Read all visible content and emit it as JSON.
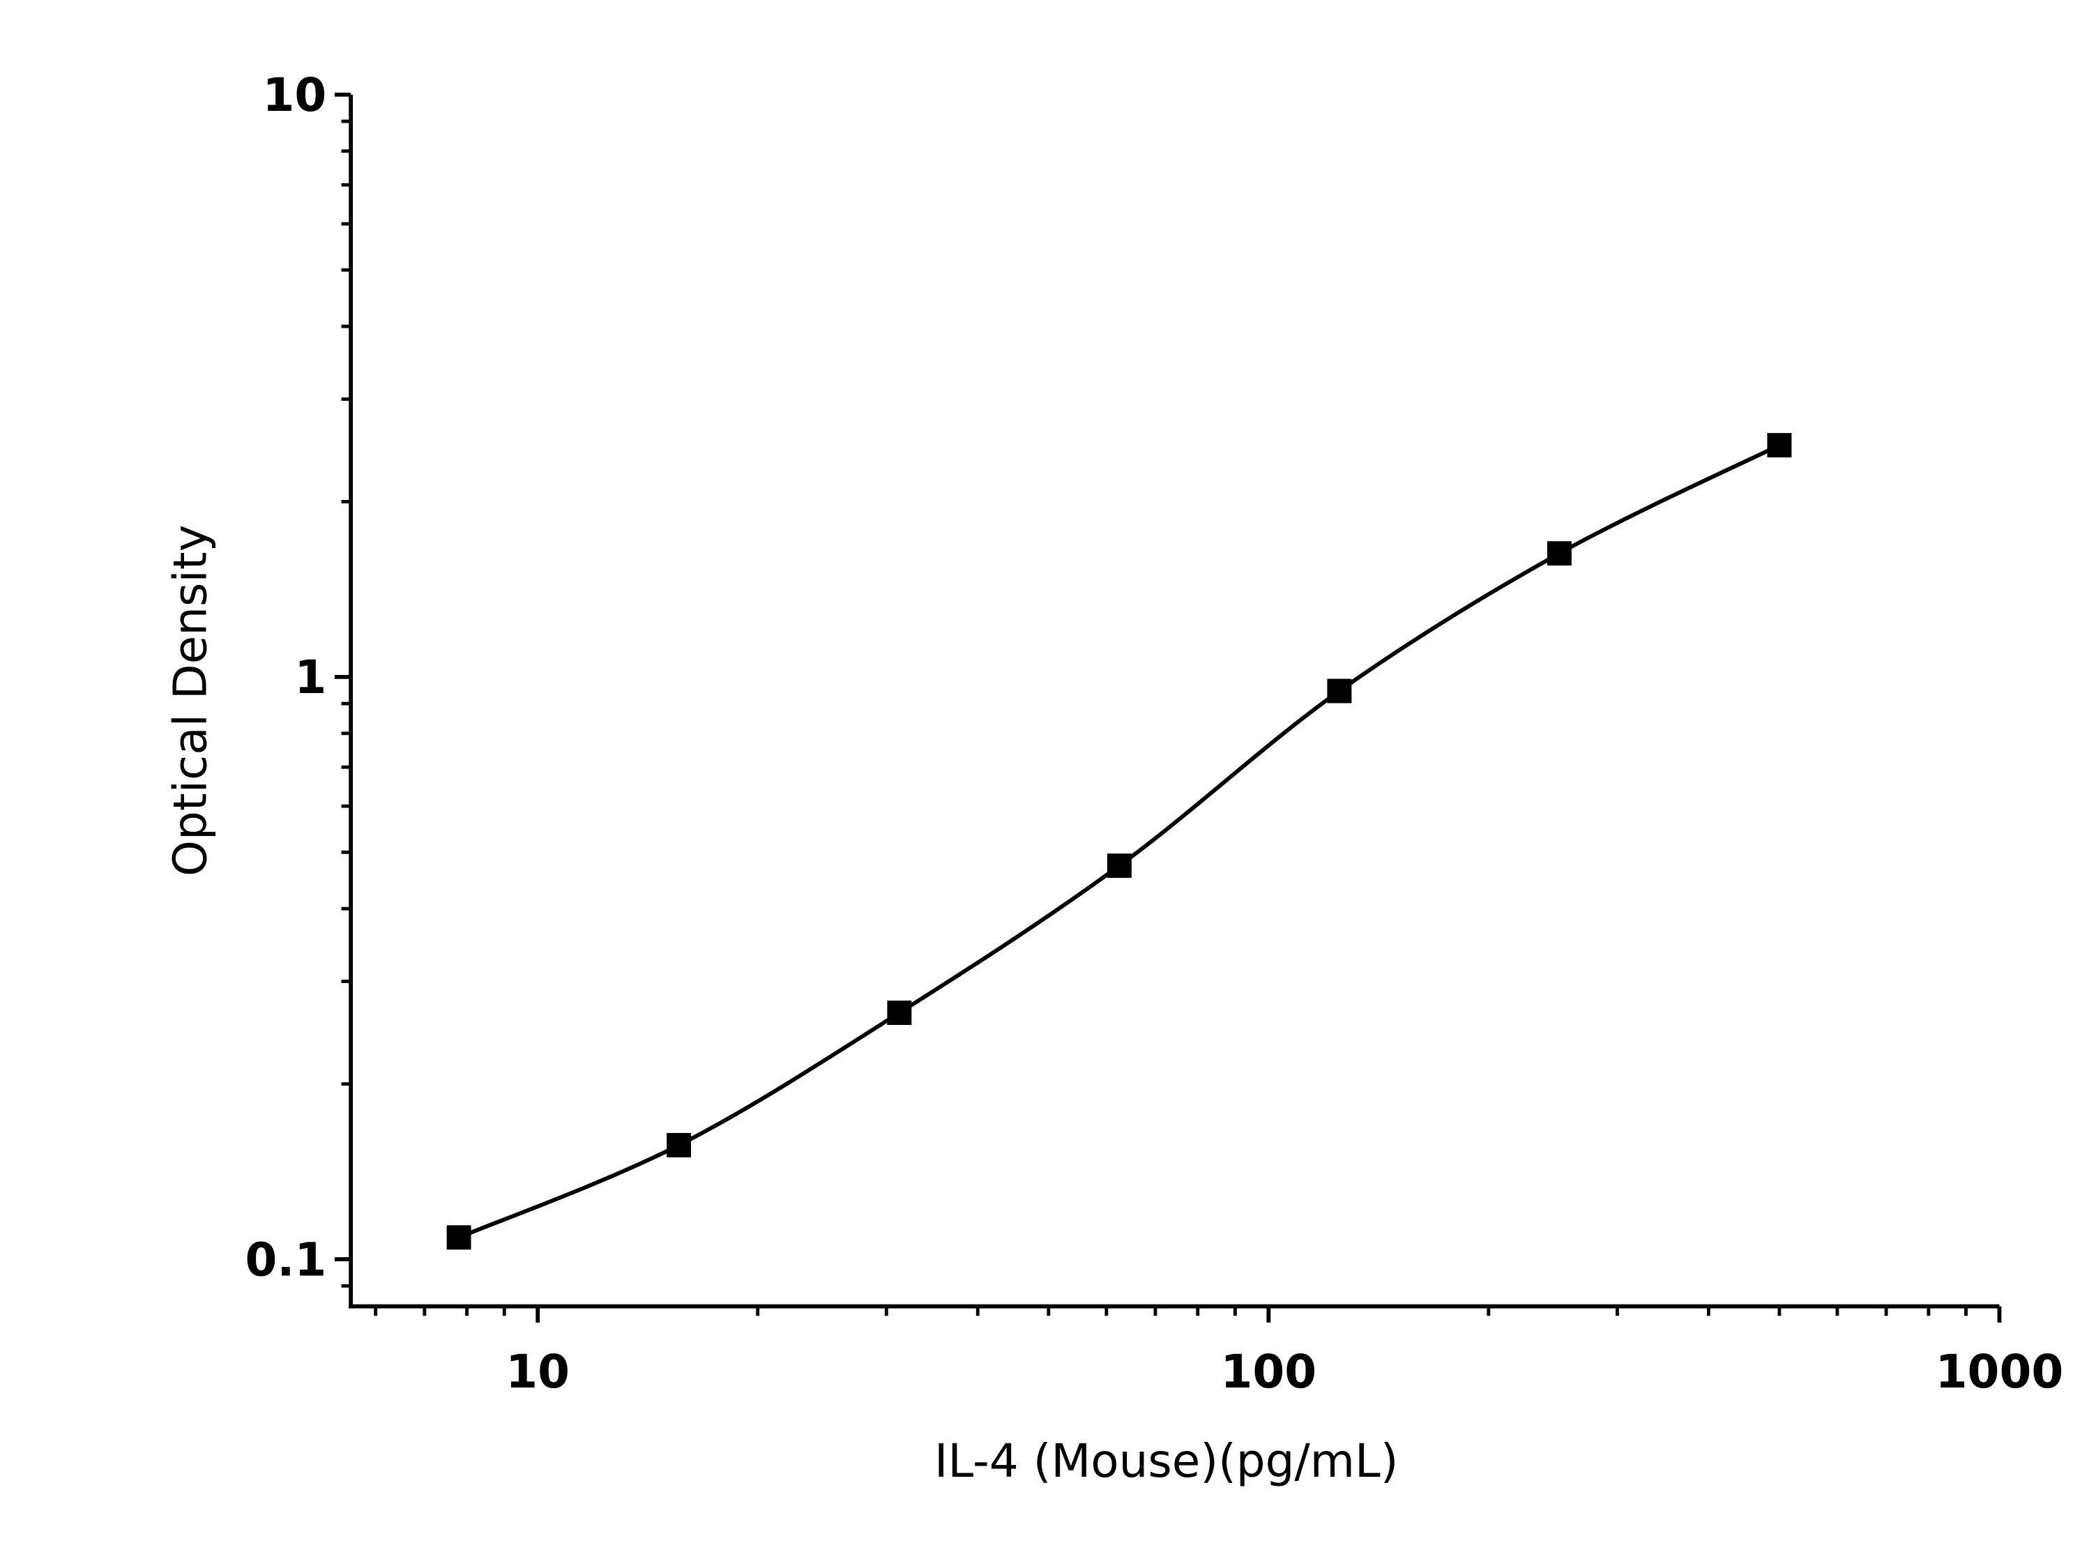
{
  "chart_data": {
    "type": "scatter",
    "x_label": "IL-4 (Mouse)(pg/mL)",
    "y_label": "Optical Density",
    "x": [
      7.8,
      15.6,
      31.25,
      62.5,
      125,
      250,
      500
    ],
    "series": [
      {
        "color": "#000000",
        "values": [
          0.109,
          0.157,
          0.265,
          0.474,
          0.946,
          1.63,
          2.5
        ]
      }
    ],
    "xlim": [
      5.55,
      1000
    ],
    "ylim": [
      0.083,
      10
    ],
    "xticks": [
      10,
      100,
      1000
    ],
    "yticks": [
      0.1,
      1,
      10
    ],
    "xscale": "log",
    "yscale": "log",
    "fit_curve": true
  }
}
